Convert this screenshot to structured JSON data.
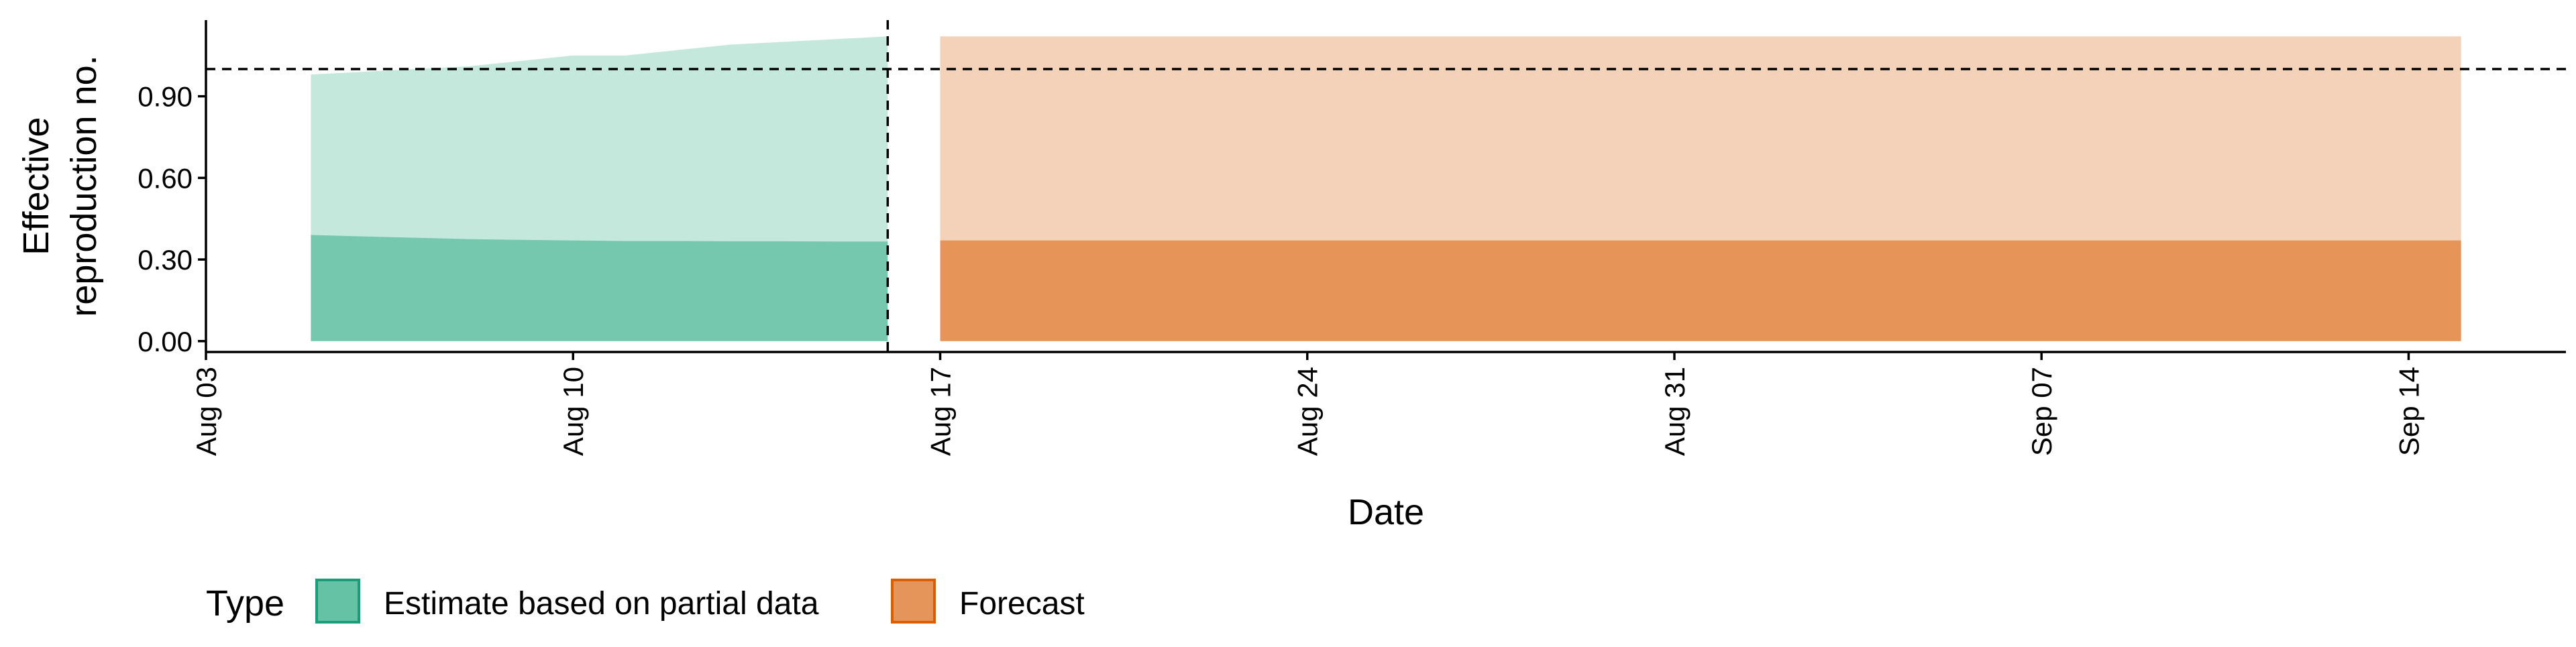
{
  "chart_data": {
    "type": "area",
    "xlabel": "Date",
    "ylabel_lines": [
      "Effective",
      "reproduction no."
    ],
    "x_domain": [
      "2020-08-03",
      "2020-09-17"
    ],
    "ylim": [
      -0.04,
      1.18
    ],
    "x_ticks": [
      {
        "date": "2020-08-03",
        "label": "Aug 03"
      },
      {
        "date": "2020-08-10",
        "label": "Aug 10"
      },
      {
        "date": "2020-08-17",
        "label": "Aug 17"
      },
      {
        "date": "2020-08-24",
        "label": "Aug 24"
      },
      {
        "date": "2020-08-31",
        "label": "Aug 31"
      },
      {
        "date": "2020-09-07",
        "label": "Sep 07"
      },
      {
        "date": "2020-09-14",
        "label": "Sep 14"
      }
    ],
    "y_ticks": [
      {
        "value": 0.0,
        "label": "0.00"
      },
      {
        "value": 0.3,
        "label": "0.30"
      },
      {
        "value": 0.6,
        "label": "0.60"
      },
      {
        "value": 0.9,
        "label": "0.90"
      }
    ],
    "reference_hline": 1.0,
    "reference_vline": "2020-08-16",
    "series": [
      {
        "name": "Estimate based on partial data",
        "color": "#66c2a5",
        "ribbons": [
          {
            "opacity": 0.38,
            "dates": [
              "2020-08-05",
              "2020-08-06",
              "2020-08-07",
              "2020-08-08",
              "2020-08-09",
              "2020-08-10",
              "2020-08-11",
              "2020-08-12",
              "2020-08-13",
              "2020-08-14",
              "2020-08-15",
              "2020-08-16"
            ],
            "lower": [
              0.0,
              0.0,
              0.0,
              0.0,
              0.0,
              0.0,
              0.0,
              0.0,
              0.0,
              0.0,
              0.0,
              0.0
            ],
            "upper": [
              0.98,
              0.99,
              1.0,
              1.01,
              1.03,
              1.05,
              1.05,
              1.07,
              1.09,
              1.1,
              1.11,
              1.12
            ]
          },
          {
            "opacity": 0.85,
            "dates": [
              "2020-08-05",
              "2020-08-06",
              "2020-08-07",
              "2020-08-08",
              "2020-08-09",
              "2020-08-10",
              "2020-08-11",
              "2020-08-12",
              "2020-08-13",
              "2020-08-14",
              "2020-08-15",
              "2020-08-16"
            ],
            "lower": [
              0.0,
              0.0,
              0.0,
              0.0,
              0.0,
              0.0,
              0.0,
              0.0,
              0.0,
              0.0,
              0.0,
              0.0
            ],
            "upper": [
              0.39,
              0.385,
              0.38,
              0.375,
              0.372,
              0.37,
              0.368,
              0.368,
              0.367,
              0.367,
              0.366,
              0.366
            ]
          }
        ]
      },
      {
        "name": "Forecast",
        "color": "#e38a46",
        "ribbons": [
          {
            "opacity": 0.38,
            "dates": [
              "2020-08-17",
              "2020-09-15"
            ],
            "lower": [
              0.0,
              0.0
            ],
            "upper": [
              1.12,
              1.12
            ]
          },
          {
            "opacity": 0.85,
            "dates": [
              "2020-08-17",
              "2020-09-15"
            ],
            "lower": [
              0.0,
              0.0
            ],
            "upper": [
              0.37,
              0.37
            ]
          }
        ]
      }
    ],
    "legend": {
      "title": "Type",
      "position": "bottom-left",
      "items": [
        {
          "label": "Estimate based on partial data",
          "fill": "#66c2a5",
          "stroke": "#1b9e77"
        },
        {
          "label": "Forecast",
          "fill": "#e6955a",
          "stroke": "#d95f02"
        }
      ]
    }
  }
}
